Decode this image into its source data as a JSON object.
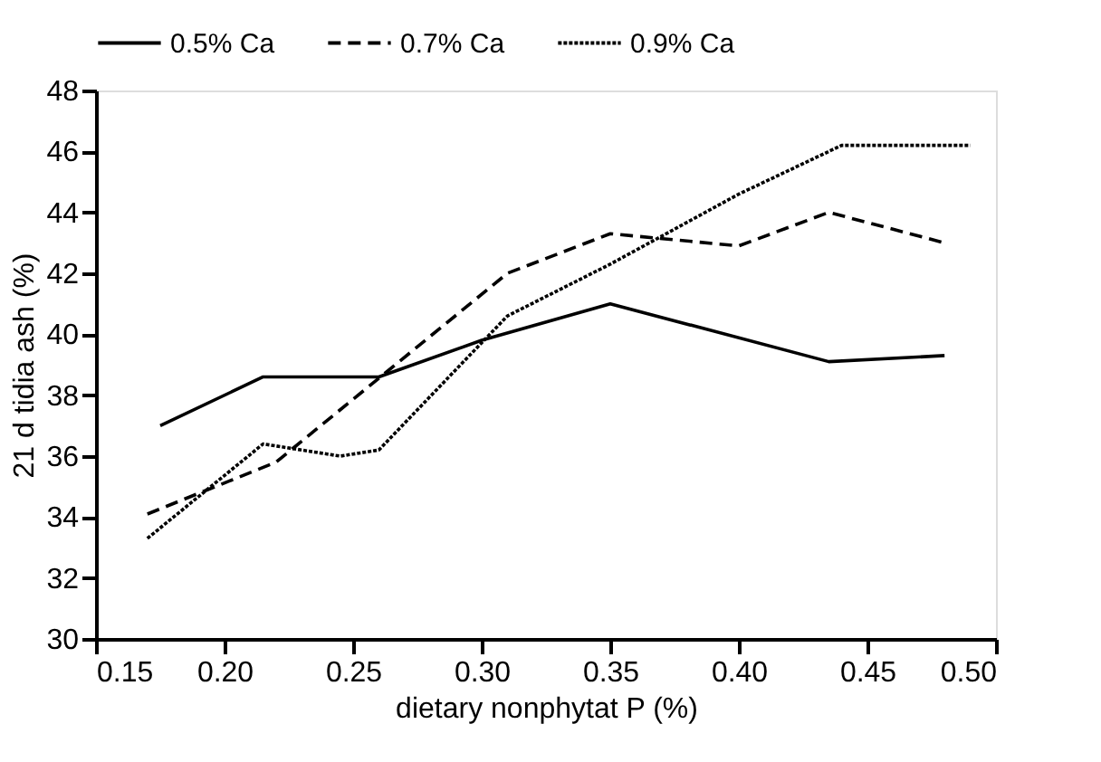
{
  "chart_data": {
    "type": "line",
    "xlabel": "dietary nonphytat P (%)",
    "ylabel": "21 d tidia ash (%)",
    "xlim": [
      0.15,
      0.5
    ],
    "xticks": [
      {
        "value": 0.15,
        "label": "0.15"
      },
      {
        "value": 0.2,
        "label": "0.20"
      },
      {
        "value": 0.25,
        "label": "0.25"
      },
      {
        "value": 0.3,
        "label": "0.30"
      },
      {
        "value": 0.35,
        "label": "0.35"
      },
      {
        "value": 0.4,
        "label": "0.40"
      },
      {
        "value": 0.45,
        "label": "0.45"
      },
      {
        "value": 0.5,
        "label": "0.50"
      }
    ],
    "ylim": [
      30,
      48
    ],
    "yticks": [
      30,
      32,
      34,
      36,
      38,
      40,
      42,
      44,
      46,
      48
    ],
    "grid": false,
    "legend": "top",
    "marker": "none",
    "series": [
      {
        "name": "0.5% Ca",
        "color": "#000000",
        "line_style": "solid",
        "x": [
          0.175,
          0.215,
          0.26,
          0.3,
          0.35,
          0.435,
          0.48
        ],
        "values": [
          37,
          38.6,
          38.6,
          39.8,
          41,
          39.1,
          39.3
        ]
      },
      {
        "name": "0.7% Ca",
        "color": "#000000",
        "line_style": "dashed",
        "x": [
          0.17,
          0.22,
          0.31,
          0.35,
          0.4,
          0.435,
          0.48
        ],
        "values": [
          34.1,
          35.8,
          42,
          43.3,
          42.9,
          44,
          43
        ]
      },
      {
        "name": "0.9% Ca",
        "color": "#000000",
        "line_style": "dotted",
        "x": [
          0.17,
          0.215,
          0.245,
          0.26,
          0.31,
          0.35,
          0.4,
          0.44,
          0.49
        ],
        "values": [
          33.3,
          36.4,
          36,
          36.2,
          40.6,
          42.3,
          44.6,
          46.2,
          46.2
        ]
      }
    ]
  }
}
